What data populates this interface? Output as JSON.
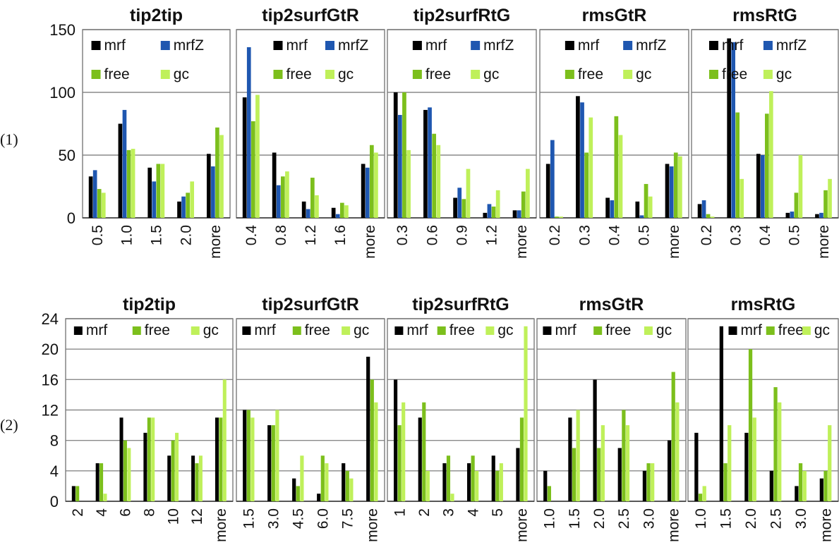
{
  "colors": {
    "mrf": "#000000",
    "mrfZ": "#1f57b0",
    "free": "#7cbf1c",
    "gc": "#bff05a"
  },
  "chart_data": [
    {
      "type": "bar",
      "row": "(1)",
      "title": "tip2tip",
      "categories": [
        "0.5",
        "1.0",
        "1.5",
        "2.0",
        "more"
      ],
      "ylim": [
        0,
        150
      ],
      "yticks": [
        "0",
        "50",
        "100",
        "150"
      ],
      "series": [
        {
          "name": "mrf",
          "values": [
            33,
            75,
            40,
            13,
            51
          ]
        },
        {
          "name": "mrfZ",
          "values": [
            38,
            86,
            29,
            17,
            41
          ]
        },
        {
          "name": "free",
          "values": [
            23,
            54,
            43,
            20,
            72
          ]
        },
        {
          "name": "gc",
          "values": [
            20,
            55,
            43,
            29,
            66
          ]
        }
      ]
    },
    {
      "type": "bar",
      "row": "(1)",
      "title": "tip2surfGtR",
      "categories": [
        "0.4",
        "0.8",
        "1.2",
        "1.6",
        "more"
      ],
      "ylim": [
        0,
        150
      ],
      "series": [
        {
          "name": "mrf",
          "values": [
            96,
            52,
            13,
            8,
            43
          ]
        },
        {
          "name": "mrfZ",
          "values": [
            136,
            26,
            7,
            3,
            40
          ]
        },
        {
          "name": "free",
          "values": [
            77,
            33,
            32,
            12,
            58
          ]
        },
        {
          "name": "gc",
          "values": [
            98,
            37,
            18,
            10,
            52
          ]
        }
      ]
    },
    {
      "type": "bar",
      "row": "(1)",
      "title": "tip2surfRtG",
      "categories": [
        "0.3",
        "0.6",
        "0.9",
        "1.2",
        "more"
      ],
      "ylim": [
        0,
        150
      ],
      "series": [
        {
          "name": "mrf",
          "values": [
            100,
            86,
            16,
            4,
            6
          ]
        },
        {
          "name": "mrfZ",
          "values": [
            82,
            88,
            24,
            11,
            6
          ]
        },
        {
          "name": "free",
          "values": [
            100,
            67,
            15,
            9,
            21
          ]
        },
        {
          "name": "gc",
          "values": [
            54,
            58,
            39,
            22,
            39
          ]
        }
      ]
    },
    {
      "type": "bar",
      "row": "(1)",
      "title": "rmsGtR",
      "categories": [
        "0.2",
        "0.3",
        "0.4",
        "0.5",
        "more"
      ],
      "ylim": [
        0,
        150
      ],
      "series": [
        {
          "name": "mrf",
          "values": [
            43,
            97,
            16,
            13,
            43
          ]
        },
        {
          "name": "mrfZ",
          "values": [
            62,
            92,
            14,
            2,
            41
          ]
        },
        {
          "name": "free",
          "values": [
            1,
            52,
            81,
            27,
            52
          ]
        },
        {
          "name": "gc",
          "values": [
            1,
            80,
            66,
            17,
            49
          ]
        }
      ]
    },
    {
      "type": "bar",
      "row": "(1)",
      "title": "rmsRtG",
      "categories": [
        "0.2",
        "0.3",
        "0.4",
        "0.5",
        "more"
      ],
      "ylim": [
        0,
        150
      ],
      "series": [
        {
          "name": "mrf",
          "values": [
            11,
            143,
            51,
            4,
            3
          ]
        },
        {
          "name": "mrfZ",
          "values": [
            14,
            140,
            50,
            5,
            4
          ]
        },
        {
          "name": "free",
          "values": [
            3,
            84,
            83,
            20,
            22
          ]
        },
        {
          "name": "gc",
          "values": [
            1,
            31,
            101,
            50,
            31
          ]
        }
      ]
    },
    {
      "type": "bar",
      "row": "(2)",
      "title": "tip2tip",
      "categories": [
        "2",
        "4",
        "6",
        "8",
        "10",
        "12",
        "more"
      ],
      "ylim": [
        0,
        24
      ],
      "yticks": [
        "0",
        "4",
        "8",
        "12",
        "16",
        "20",
        "24"
      ],
      "series": [
        {
          "name": "mrf",
          "values": [
            2,
            5,
            11,
            9,
            6,
            6,
            11
          ]
        },
        {
          "name": "free",
          "values": [
            2,
            5,
            8,
            11,
            8,
            5,
            11
          ]
        },
        {
          "name": "gc",
          "values": [
            0,
            1,
            7,
            11,
            9,
            6,
            16
          ]
        }
      ]
    },
    {
      "type": "bar",
      "row": "(2)",
      "title": "tip2surfGtR",
      "categories": [
        "1.5",
        "3.0",
        "4.5",
        "6.0",
        "7.5",
        "more"
      ],
      "ylim": [
        0,
        24
      ],
      "series": [
        {
          "name": "mrf",
          "values": [
            12,
            10,
            3,
            1,
            5,
            19
          ]
        },
        {
          "name": "free",
          "values": [
            12,
            10,
            2,
            6,
            4,
            16
          ]
        },
        {
          "name": "gc",
          "values": [
            11,
            12,
            6,
            5,
            3,
            13
          ]
        }
      ]
    },
    {
      "type": "bar",
      "row": "(2)",
      "title": "tip2surfRtG",
      "categories": [
        "1",
        "2",
        "3",
        "4",
        "5",
        "more"
      ],
      "ylim": [
        0,
        24
      ],
      "series": [
        {
          "name": "mrf",
          "values": [
            16,
            11,
            5,
            5,
            6,
            7
          ]
        },
        {
          "name": "free",
          "values": [
            10,
            13,
            6,
            6,
            4,
            11
          ]
        },
        {
          "name": "gc",
          "values": [
            13,
            4,
            1,
            4,
            5,
            23
          ]
        }
      ]
    },
    {
      "type": "bar",
      "row": "(2)",
      "title": "rmsGtR",
      "categories": [
        "1.0",
        "1.5",
        "2.0",
        "2.5",
        "3.0",
        "more"
      ],
      "ylim": [
        0,
        24
      ],
      "series": [
        {
          "name": "mrf",
          "values": [
            4,
            11,
            16,
            7,
            4,
            8
          ]
        },
        {
          "name": "free",
          "values": [
            2,
            7,
            7,
            12,
            5,
            17
          ]
        },
        {
          "name": "gc",
          "values": [
            0,
            12,
            10,
            10,
            5,
            13
          ]
        }
      ]
    },
    {
      "type": "bar",
      "row": "(2)",
      "title": "rmsRtG",
      "categories": [
        "1.0",
        "1.5",
        "2.0",
        "2.5",
        "3.0",
        "more"
      ],
      "ylim": [
        0,
        24
      ],
      "series": [
        {
          "name": "mrf",
          "values": [
            9,
            23,
            9,
            4,
            2,
            3
          ]
        },
        {
          "name": "free",
          "values": [
            1,
            5,
            20,
            15,
            5,
            4
          ]
        },
        {
          "name": "gc",
          "values": [
            2,
            10,
            11,
            13,
            4,
            10
          ]
        }
      ]
    }
  ]
}
